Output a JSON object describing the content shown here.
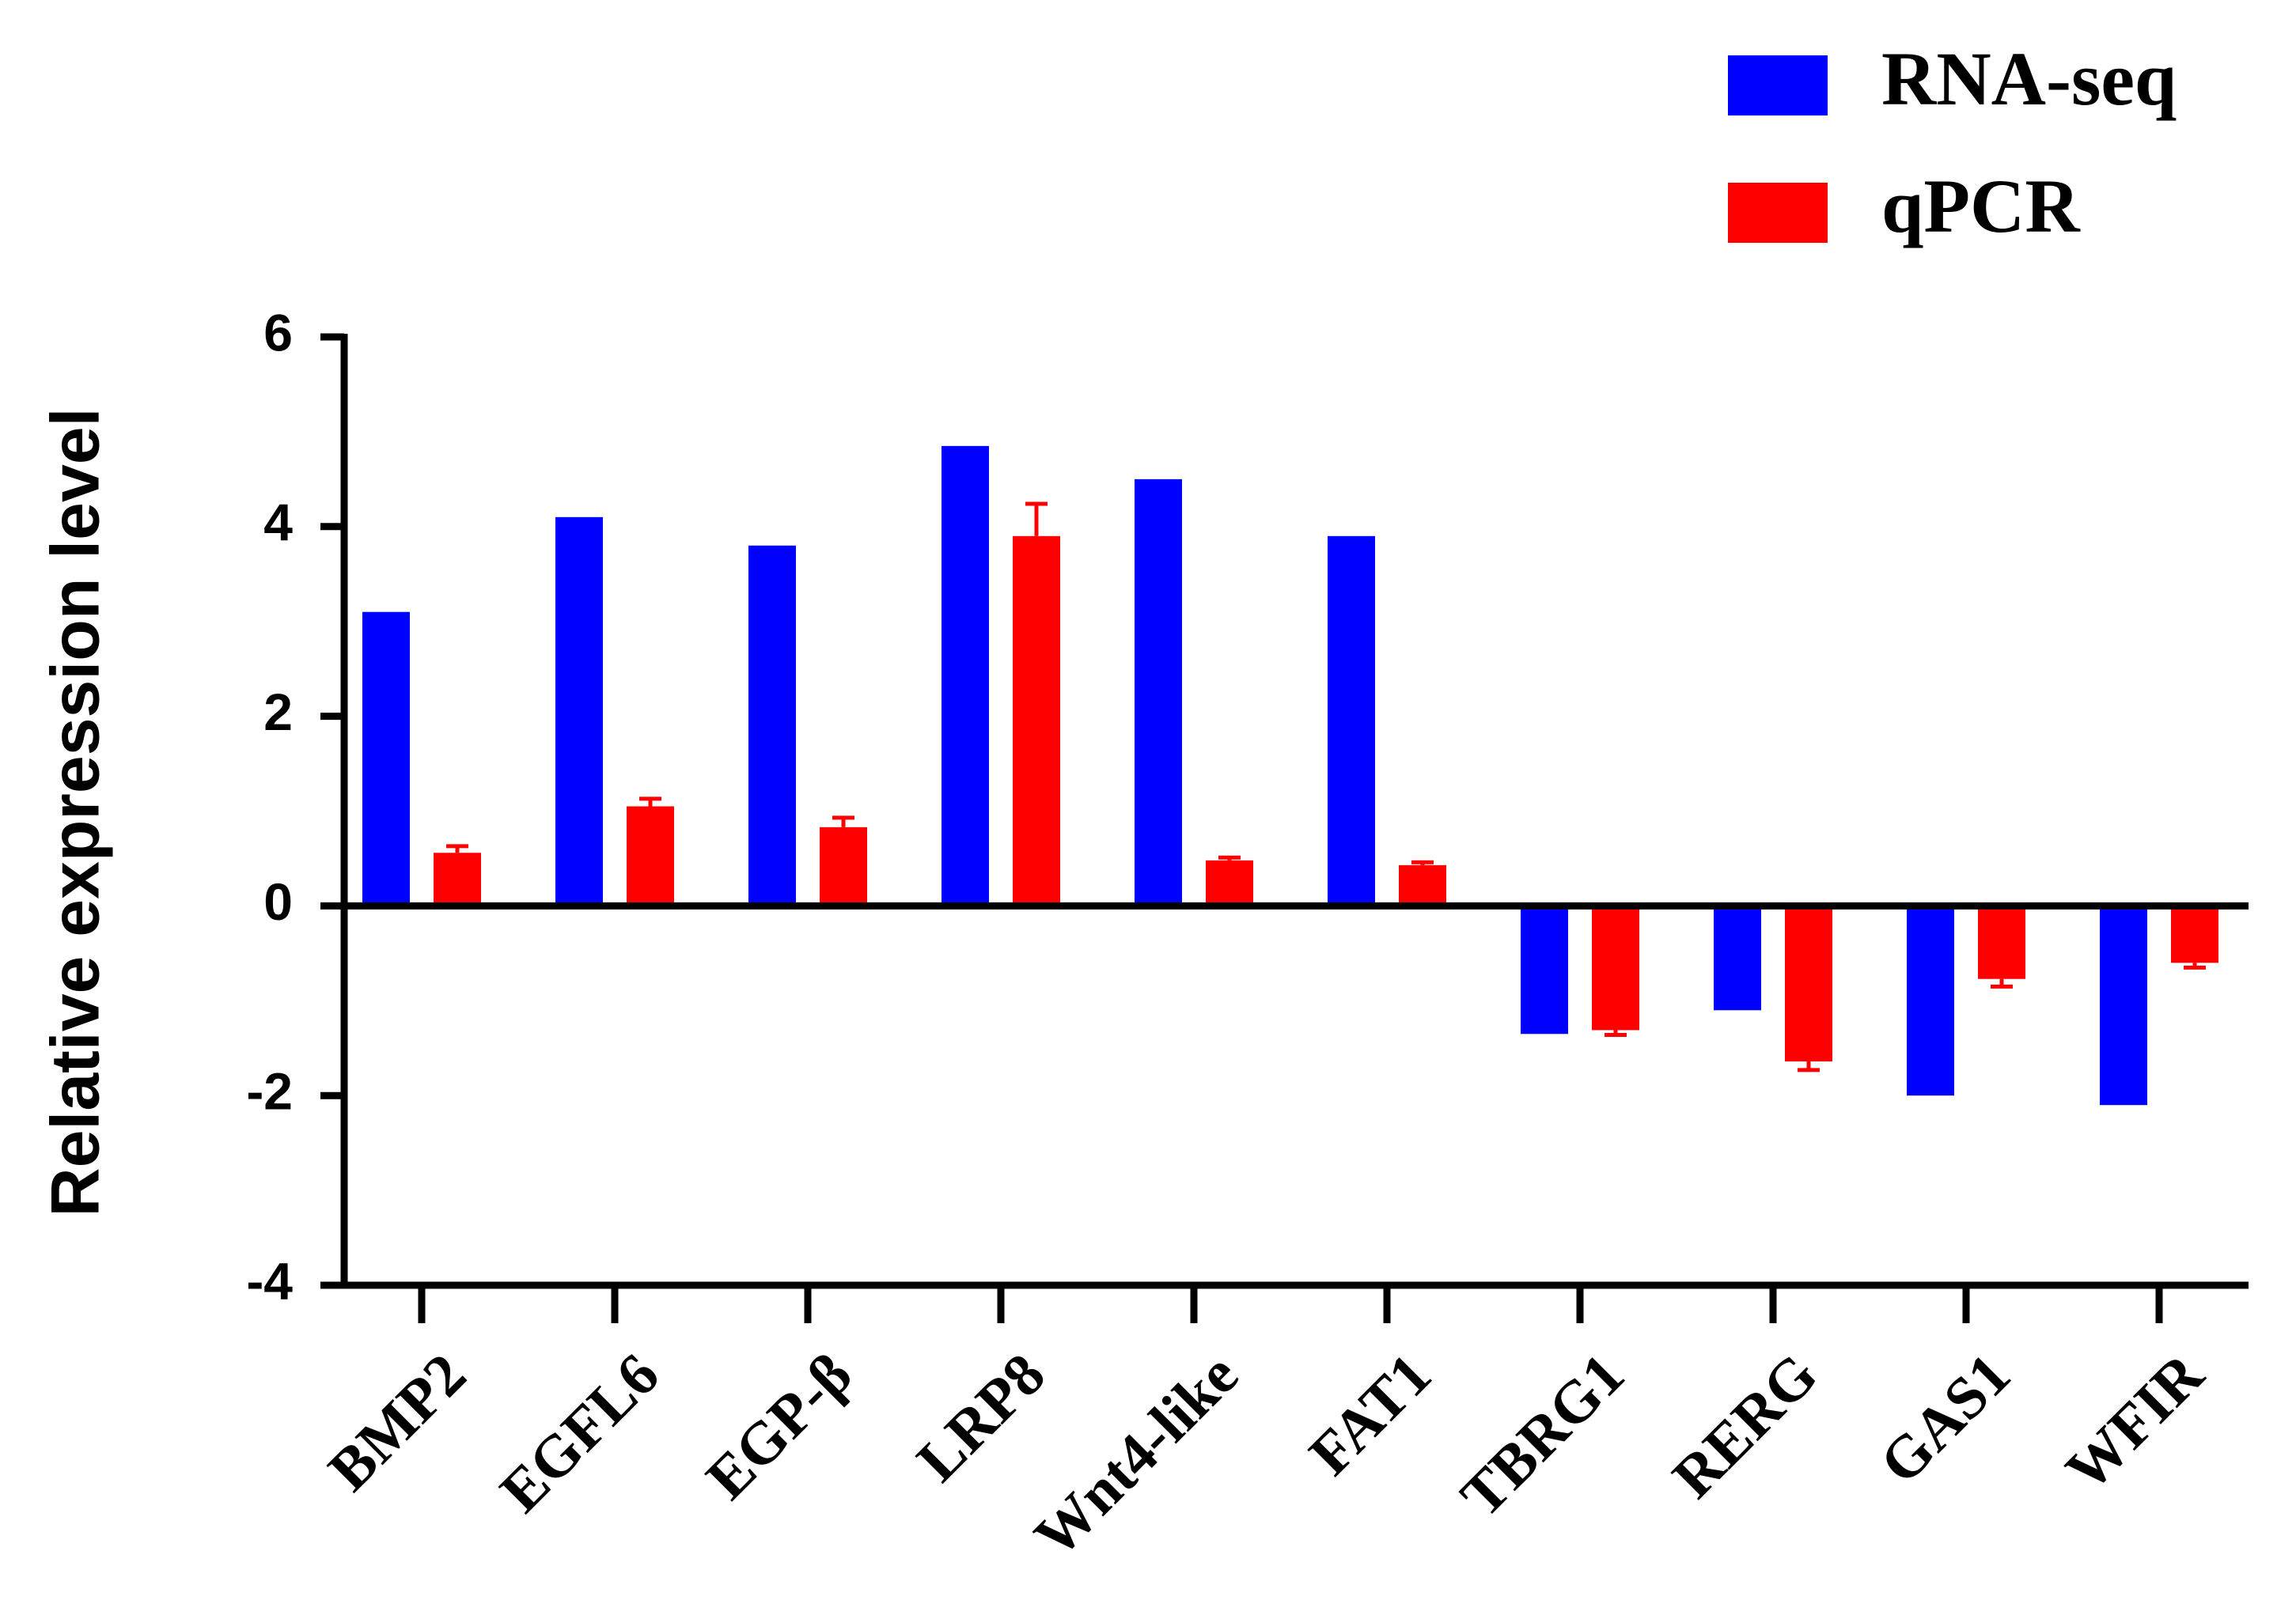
{
  "chart_data": {
    "type": "bar",
    "y_label": "Relative expression level",
    "categories": [
      "BMP2",
      "EGFL6",
      "EGP-β",
      "LRP8",
      "Wnt4-like",
      "FAT1",
      "TBRG1",
      "RERG",
      "GAS1",
      "WFIR"
    ],
    "series": [
      {
        "name": "RNA-seq",
        "color": "#0000ff",
        "values": [
          3.1,
          4.1,
          3.8,
          4.85,
          4.5,
          3.9,
          -1.35,
          -1.1,
          -2.0,
          -2.1
        ]
      },
      {
        "name": "qPCR",
        "color": "#ff0000",
        "values": [
          0.56,
          1.05,
          0.83,
          3.9,
          0.48,
          0.43,
          -1.31,
          -1.64,
          -0.77,
          -0.6
        ],
        "errors": [
          0.07,
          0.08,
          0.1,
          0.34,
          0.03,
          0.03,
          0.05,
          0.09,
          0.08,
          0.05
        ]
      }
    ],
    "ylim": [
      -4,
      6
    ],
    "yticks": [
      -4,
      -2,
      0,
      2,
      4,
      6
    ],
    "legend": "top-right"
  }
}
